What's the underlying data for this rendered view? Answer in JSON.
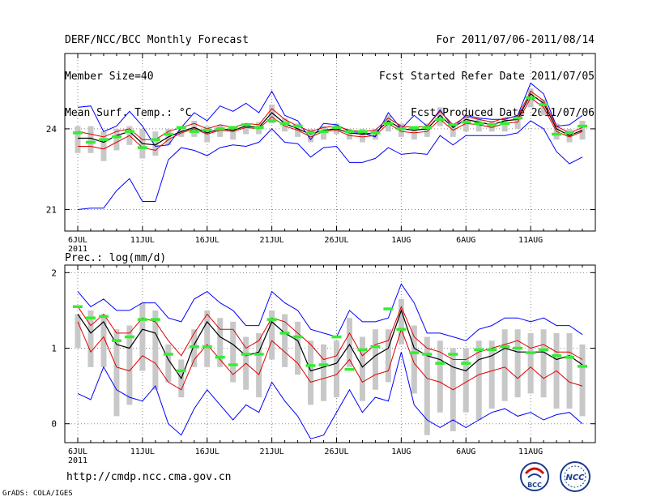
{
  "header": {
    "left": [
      "DERF/NCC/BCC Monthly Forecast",
      "Member Size=40",
      "Mean Surf. Temp.: °C"
    ],
    "right": [
      "For 2011/07/06-2011/08/14",
      "Fcst Started Refer Date 2011/07/05",
      "Fcst Produced Date 2011/07/06"
    ]
  },
  "footer": {
    "url": "http://cmdp.ncc.cma.gov.cn",
    "credit": "GrADS: COLA/IGES",
    "logo1": "BCC",
    "logo2": "NCC"
  },
  "colors": {
    "envelope": "#0000ff",
    "spread": "#e00000",
    "mean": "#000000",
    "observed": "#33ee33",
    "box": "#c8c8c8",
    "grid": "#888888"
  },
  "chart_data": [
    {
      "type": "line",
      "title": "Mean Surf. Temp.: °C",
      "xticks": [
        "6JUL",
        "11JUL",
        "16JUL",
        "21JUL",
        "26JUL",
        "1AUG",
        "6AUG",
        "11AUG"
      ],
      "year_label": "2011",
      "yticks": [
        21,
        24
      ],
      "ylim": [
        20.2,
        26.8
      ],
      "days": 40,
      "series": [
        {
          "name": "max",
          "values": [
            24.8,
            24.85,
            23.9,
            24.1,
            24.65,
            24.1,
            23.35,
            23.4,
            24.05,
            24.6,
            24.3,
            24.85,
            24.65,
            24.95,
            24.6,
            25.4,
            24.5,
            24.3,
            23.6,
            24.2,
            24.15,
            23.9,
            23.85,
            23.7,
            24.6,
            24.0,
            24.5,
            24.1,
            24.7,
            24.05,
            24.5,
            24.4,
            24.35,
            24.35,
            24.5,
            25.7,
            25.3,
            24.1,
            24.15,
            24.5
          ]
        },
        {
          "name": "upper",
          "values": [
            23.9,
            23.8,
            23.7,
            23.9,
            24.0,
            23.6,
            23.6,
            23.9,
            24.05,
            24.2,
            24.0,
            24.15,
            24.05,
            24.2,
            24.15,
            24.75,
            24.35,
            24.1,
            23.9,
            24.05,
            24.1,
            23.95,
            23.9,
            23.95,
            24.4,
            24.1,
            24.05,
            24.1,
            24.65,
            24.15,
            24.45,
            24.35,
            24.25,
            24.4,
            24.45,
            25.4,
            25.05,
            24.1,
            23.85,
            24.05
          ]
        },
        {
          "name": "mean",
          "values": [
            23.65,
            23.65,
            23.5,
            23.75,
            23.9,
            23.45,
            23.4,
            23.7,
            23.9,
            24.05,
            23.85,
            24.0,
            23.95,
            24.1,
            24.05,
            24.6,
            24.2,
            24.0,
            23.8,
            23.95,
            24.0,
            23.85,
            23.8,
            23.85,
            24.3,
            24.0,
            23.95,
            24.0,
            24.5,
            24.05,
            24.35,
            24.25,
            24.15,
            24.3,
            24.35,
            25.3,
            24.95,
            24.0,
            23.75,
            23.95
          ]
        },
        {
          "name": "lower",
          "values": [
            23.35,
            23.35,
            23.25,
            23.5,
            23.75,
            23.3,
            23.2,
            23.6,
            23.85,
            24.0,
            23.8,
            23.95,
            23.9,
            24.05,
            24.0,
            24.45,
            24.1,
            23.95,
            23.7,
            23.9,
            23.95,
            23.75,
            23.7,
            23.75,
            24.2,
            23.9,
            23.85,
            23.9,
            24.35,
            23.95,
            24.2,
            24.15,
            24.05,
            24.2,
            24.25,
            25.15,
            24.8,
            23.9,
            23.7,
            23.9
          ]
        },
        {
          "name": "min",
          "values": [
            21.0,
            21.05,
            21.05,
            21.7,
            22.15,
            21.3,
            21.3,
            22.85,
            23.3,
            23.2,
            23.0,
            23.3,
            23.4,
            23.35,
            23.5,
            24.0,
            23.5,
            23.45,
            22.95,
            23.3,
            23.35,
            22.75,
            22.75,
            22.9,
            23.3,
            23.05,
            23.1,
            23.05,
            23.75,
            23.4,
            23.75,
            23.75,
            23.75,
            23.75,
            23.85,
            24.3,
            24.0,
            23.15,
            22.7,
            22.95
          ]
        },
        {
          "name": "observed",
          "values": [
            23.85,
            23.5,
            23.6,
            23.7,
            23.9,
            23.3,
            23.6,
            23.8,
            24.05,
            23.9,
            23.95,
            24.0,
            24.05,
            24.15,
            24.05,
            24.3,
            24.2,
            24.1,
            23.85,
            23.9,
            24.05,
            23.9,
            23.9,
            23.85,
            24.2,
            24.0,
            24.05,
            24.05,
            24.35,
            24.15,
            24.25,
            24.2,
            24.15,
            24.2,
            24.4,
            25.15,
            24.9,
            23.8,
            23.85,
            24.1
          ]
        },
        {
          "name": "box_top",
          "values": [
            24.1,
            24.1,
            23.9,
            24.0,
            24.1,
            24.0,
            23.9,
            24.0,
            24.1,
            24.3,
            24.1,
            24.15,
            24.1,
            24.2,
            24.25,
            24.9,
            24.4,
            24.2,
            24.0,
            24.1,
            24.2,
            24.0,
            24.0,
            24.0,
            24.5,
            24.2,
            24.1,
            24.2,
            24.8,
            24.2,
            24.5,
            24.4,
            24.3,
            24.4,
            24.5,
            25.5,
            25.1,
            24.2,
            24.0,
            24.3
          ]
        },
        {
          "name": "box_bottom",
          "values": [
            23.1,
            23.1,
            22.8,
            23.2,
            23.4,
            22.9,
            23.0,
            23.4,
            23.7,
            23.7,
            23.5,
            23.7,
            23.6,
            23.8,
            23.8,
            24.2,
            23.9,
            23.7,
            23.5,
            23.6,
            23.8,
            23.6,
            23.5,
            23.6,
            23.9,
            23.7,
            23.6,
            23.7,
            24.1,
            23.7,
            23.9,
            23.9,
            23.9,
            23.9,
            24.0,
            24.8,
            24.5,
            23.6,
            23.5,
            23.6
          ]
        }
      ]
    },
    {
      "type": "line",
      "title": "Prec.: log(mm/d)",
      "xticks": [
        "6JUL",
        "11JUL",
        "16JUL",
        "21JUL",
        "26JUL",
        "1AUG",
        "6AUG",
        "11AUG"
      ],
      "year_label": "2011",
      "yticks": [
        0,
        1,
        2
      ],
      "ylim": [
        -0.25,
        2.1
      ],
      "days": 40,
      "series": [
        {
          "name": "max",
          "values": [
            1.75,
            1.55,
            1.65,
            1.5,
            1.5,
            1.6,
            1.6,
            1.4,
            1.35,
            1.65,
            1.75,
            1.6,
            1.5,
            1.3,
            1.3,
            1.75,
            1.6,
            1.5,
            1.25,
            1.2,
            1.15,
            1.5,
            1.35,
            1.35,
            1.4,
            1.85,
            1.6,
            1.2,
            1.2,
            1.15,
            1.1,
            1.25,
            1.3,
            1.4,
            1.4,
            1.35,
            1.4,
            1.3,
            1.3,
            1.18
          ]
        },
        {
          "name": "upper",
          "values": [
            1.55,
            1.3,
            1.45,
            1.2,
            1.2,
            1.4,
            1.35,
            1.1,
            0.9,
            1.2,
            1.45,
            1.25,
            1.25,
            1.0,
            1.1,
            1.4,
            1.35,
            1.2,
            1.05,
            0.85,
            0.9,
            1.2,
            0.9,
            1.05,
            1.1,
            1.55,
            1.15,
            1.0,
            0.95,
            0.85,
            0.85,
            0.95,
            1.0,
            1.05,
            1.1,
            1.0,
            1.05,
            0.95,
            0.95,
            0.85
          ]
        },
        {
          "name": "mean",
          "values": [
            1.45,
            1.2,
            1.35,
            1.05,
            1.0,
            1.25,
            1.2,
            0.85,
            0.6,
            1.05,
            1.35,
            1.15,
            1.05,
            0.9,
            0.95,
            1.35,
            1.2,
            1.1,
            0.7,
            0.75,
            0.8,
            1.05,
            0.75,
            0.9,
            1.0,
            1.5,
            1.0,
            0.9,
            0.85,
            0.75,
            0.7,
            0.85,
            0.9,
            1.0,
            0.95,
            0.95,
            0.95,
            0.85,
            0.9,
            0.78
          ]
        },
        {
          "name": "lower",
          "values": [
            1.35,
            0.95,
            1.15,
            0.75,
            0.7,
            0.9,
            0.8,
            0.55,
            0.45,
            0.85,
            1.05,
            0.85,
            0.65,
            0.8,
            0.65,
            1.1,
            0.95,
            0.8,
            0.55,
            0.6,
            0.65,
            0.85,
            0.55,
            0.65,
            0.7,
            1.25,
            0.8,
            0.6,
            0.55,
            0.45,
            0.55,
            0.65,
            0.7,
            0.75,
            0.6,
            0.75,
            0.6,
            0.7,
            0.55,
            0.5
          ]
        },
        {
          "name": "min",
          "values": [
            0.4,
            0.32,
            0.75,
            0.45,
            0.35,
            0.3,
            0.5,
            0.0,
            -0.15,
            0.2,
            0.45,
            0.25,
            0.05,
            0.25,
            0.15,
            0.55,
            0.3,
            0.1,
            -0.2,
            -0.15,
            0.15,
            0.45,
            0.15,
            0.35,
            0.3,
            0.95,
            0.25,
            0.05,
            -0.05,
            0.05,
            -0.05,
            0.05,
            0.15,
            0.2,
            0.1,
            0.15,
            0.05,
            0.12,
            0.15,
            0.0
          ]
        },
        {
          "name": "observed",
          "values": [
            1.55,
            1.4,
            1.42,
            1.1,
            1.15,
            1.38,
            1.38,
            0.92,
            0.7,
            1.02,
            1.02,
            0.88,
            0.78,
            0.92,
            0.92,
            1.38,
            1.2,
            1.15,
            0.77,
            0.78,
            1.15,
            0.72,
            0.98,
            1.02,
            1.52,
            1.25,
            0.94,
            0.92,
            0.8,
            0.92,
            0.8,
            0.98,
            0.98,
            1.02,
            1.0,
            0.94,
            0.98,
            0.9,
            0.88,
            0.76
          ]
        },
        {
          "name": "box_top",
          "values": [
            1.45,
            1.5,
            1.45,
            1.25,
            1.3,
            1.6,
            1.5,
            1.05,
            0.85,
            1.25,
            1.5,
            1.4,
            1.35,
            1.15,
            1.2,
            1.5,
            1.45,
            1.35,
            1.1,
            1.05,
            1.1,
            1.4,
            1.15,
            1.25,
            1.25,
            1.65,
            1.3,
            1.15,
            1.1,
            1.0,
            1.0,
            1.1,
            1.1,
            1.25,
            1.25,
            1.2,
            1.25,
            1.2,
            1.2,
            1.05
          ]
        },
        {
          "name": "box_bottom",
          "values": [
            1.0,
            0.75,
            0.75,
            0.1,
            0.25,
            0.7,
            0.45,
            0.55,
            0.35,
            0.75,
            0.75,
            0.75,
            0.55,
            0.45,
            0.35,
            0.85,
            0.75,
            0.65,
            0.25,
            0.3,
            0.35,
            0.75,
            0.3,
            0.45,
            0.55,
            1.05,
            0.4,
            -0.15,
            0.15,
            -0.1,
            0.15,
            0.05,
            0.2,
            0.3,
            0.35,
            0.4,
            0.35,
            0.2,
            0.2,
            0.1
          ]
        }
      ]
    }
  ]
}
